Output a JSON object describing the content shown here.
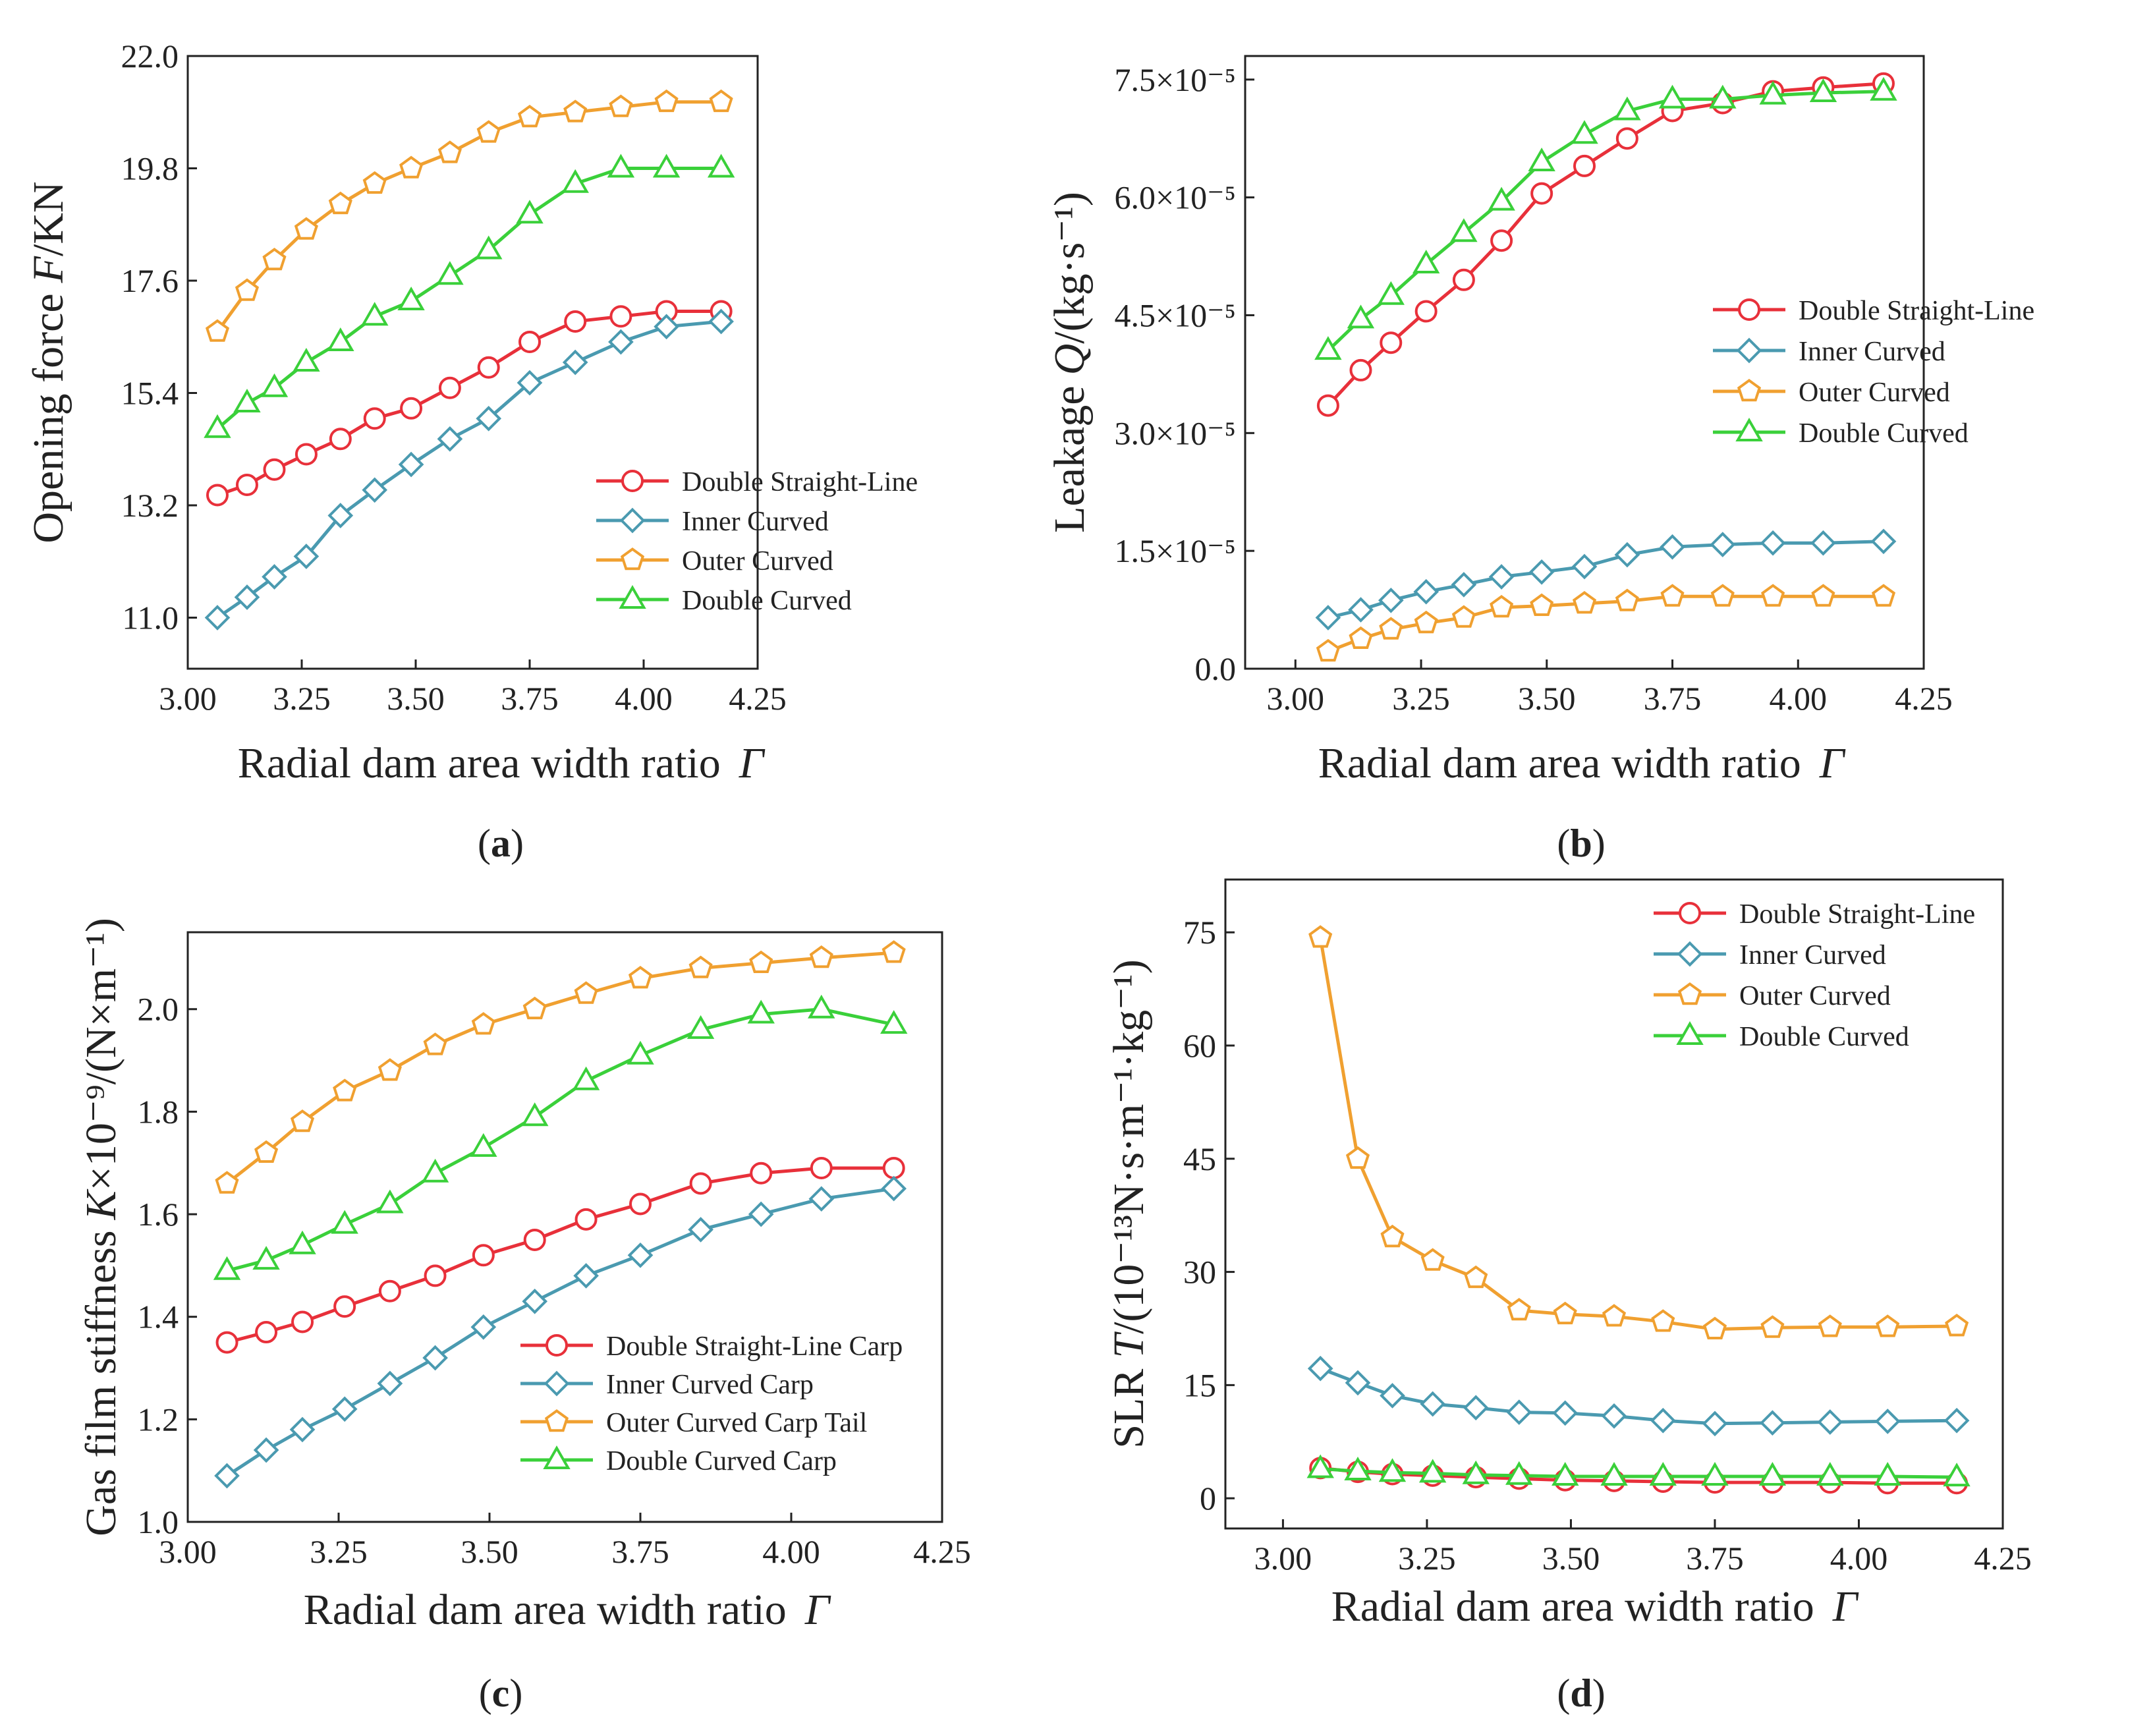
{
  "chart_data": [
    {
      "panel": "a",
      "type": "line",
      "panel_label": "a",
      "xlabel": "Radial dam area width ratio",
      "xsymbol": "Γ",
      "ylabel": "Opening force",
      "ysymbol": "F",
      "yunit": "/KN",
      "xlim": [
        3.0,
        4.25
      ],
      "ylim": [
        10.0,
        22.0
      ],
      "xticks": [
        "3.00",
        "3.25",
        "3.50",
        "3.75",
        "4.00",
        "4.25"
      ],
      "yticks": [
        "11.0",
        "13.2",
        "15.4",
        "17.6",
        "19.8",
        "22.0"
      ],
      "legend_position": "center-right",
      "x": [
        3.065,
        3.13,
        3.19,
        3.26,
        3.335,
        3.41,
        3.49,
        3.575,
        3.66,
        3.75,
        3.85,
        3.95,
        4.05,
        4.17
      ],
      "series": [
        {
          "name": "Double Straight-Line",
          "color": "#e8303a",
          "marker": "circle",
          "values": [
            13.4,
            13.6,
            13.9,
            14.2,
            14.5,
            14.9,
            15.1,
            15.5,
            15.9,
            16.4,
            16.8,
            16.9,
            17.0,
            17.0
          ]
        },
        {
          "name": "Inner Curved",
          "color": "#4a9ab0",
          "marker": "diamond",
          "values": [
            11.0,
            11.4,
            11.8,
            12.2,
            13.0,
            13.5,
            14.0,
            14.5,
            14.9,
            15.6,
            16.0,
            16.4,
            16.7,
            16.8
          ]
        },
        {
          "name": "Outer Curved",
          "color": "#f0a030",
          "marker": "pentagon",
          "values": [
            16.6,
            17.4,
            18.0,
            18.6,
            19.1,
            19.5,
            19.8,
            20.1,
            20.5,
            20.8,
            20.9,
            21.0,
            21.1,
            21.1
          ]
        },
        {
          "name": "Double Curved",
          "color": "#3ad03a",
          "marker": "triangle",
          "values": [
            14.7,
            15.2,
            15.5,
            16.0,
            16.4,
            16.9,
            17.2,
            17.7,
            18.2,
            18.9,
            19.5,
            19.8,
            19.8,
            19.8
          ]
        }
      ]
    },
    {
      "panel": "b",
      "type": "line",
      "panel_label": "b",
      "xlabel": "Radial dam area width ratio",
      "xsymbol": "Γ",
      "ylabel": "Leakage",
      "ysymbol": "Q",
      "yunit": "/(kg·s⁻¹)",
      "xlim": [
        2.9,
        4.25
      ],
      "ylim": [
        0,
        7.8
      ],
      "xticks": [
        "3.00",
        "3.25",
        "3.50",
        "3.75",
        "4.00",
        "4.25"
      ],
      "yticks": [
        "0.0",
        "1.5×10⁻⁵",
        "3.0×10⁻⁵",
        "4.5×10⁻⁵",
        "6.0×10⁻⁵",
        "7.5×10⁻⁵"
      ],
      "y_scale_note": "values in units of 10⁻⁵",
      "legend_position": "center-right",
      "x": [
        3.065,
        3.13,
        3.19,
        3.26,
        3.335,
        3.41,
        3.49,
        3.575,
        3.66,
        3.75,
        3.85,
        3.95,
        4.05,
        4.17
      ],
      "series": [
        {
          "name": "Double Straight-Line",
          "color": "#e8303a",
          "marker": "circle",
          "values": [
            3.35,
            3.8,
            4.15,
            4.55,
            4.95,
            5.45,
            6.05,
            6.4,
            6.75,
            7.1,
            7.2,
            7.35,
            7.4,
            7.45
          ]
        },
        {
          "name": "Inner Curved",
          "color": "#4a9ab0",
          "marker": "diamond",
          "values": [
            0.65,
            0.75,
            0.87,
            0.98,
            1.07,
            1.17,
            1.23,
            1.3,
            1.45,
            1.55,
            1.58,
            1.6,
            1.6,
            1.62
          ]
        },
        {
          "name": "Outer Curved",
          "color": "#f0a030",
          "marker": "pentagon",
          "values": [
            0.22,
            0.38,
            0.5,
            0.58,
            0.65,
            0.78,
            0.8,
            0.83,
            0.86,
            0.92,
            0.92,
            0.92,
            0.92,
            0.92
          ]
        },
        {
          "name": "Double Curved",
          "color": "#3ad03a",
          "marker": "triangle",
          "values": [
            4.05,
            4.45,
            4.75,
            5.15,
            5.55,
            5.95,
            6.45,
            6.8,
            7.1,
            7.25,
            7.25,
            7.3,
            7.33,
            7.35
          ]
        }
      ]
    },
    {
      "panel": "c",
      "type": "line",
      "panel_label": "c",
      "xlabel": "Radial dam area width ratio",
      "xsymbol": "Γ",
      "ylabel": "Gas film stiffness",
      "ysymbol": "K",
      "yunit": "×10⁻⁹/(N×m⁻¹)",
      "xlim": [
        3.0,
        4.25
      ],
      "ylim": [
        1.0,
        2.15
      ],
      "xticks": [
        "3.00",
        "3.25",
        "3.50",
        "3.75",
        "4.00",
        "4.25"
      ],
      "yticks": [
        "1.0",
        "1.2",
        "1.4",
        "1.6",
        "1.8",
        "2.0"
      ],
      "legend_position": "bottom-right",
      "x": [
        3.065,
        3.13,
        3.19,
        3.26,
        3.335,
        3.41,
        3.49,
        3.575,
        3.66,
        3.75,
        3.85,
        3.95,
        4.05,
        4.17
      ],
      "series": [
        {
          "name": "Double Straight-Line Carp",
          "color": "#e8303a",
          "marker": "circle",
          "values": [
            1.35,
            1.37,
            1.39,
            1.42,
            1.45,
            1.48,
            1.52,
            1.55,
            1.59,
            1.62,
            1.66,
            1.68,
            1.69,
            1.69
          ]
        },
        {
          "name": "Inner Curved Carp",
          "color": "#4a9ab0",
          "marker": "diamond",
          "values": [
            1.09,
            1.14,
            1.18,
            1.22,
            1.27,
            1.32,
            1.38,
            1.43,
            1.48,
            1.52,
            1.57,
            1.6,
            1.63,
            1.65
          ]
        },
        {
          "name": "Outer Curved Carp Tail",
          "color": "#f0a030",
          "marker": "pentagon",
          "values": [
            1.66,
            1.72,
            1.78,
            1.84,
            1.88,
            1.93,
            1.97,
            2.0,
            2.03,
            2.06,
            2.08,
            2.09,
            2.1,
            2.11
          ]
        },
        {
          "name": "Double Curved Carp",
          "color": "#3ad03a",
          "marker": "triangle",
          "values": [
            1.49,
            1.51,
            1.54,
            1.58,
            1.62,
            1.68,
            1.73,
            1.79,
            1.86,
            1.91,
            1.96,
            1.99,
            2.0,
            1.97
          ]
        }
      ]
    },
    {
      "panel": "d",
      "type": "line",
      "panel_label": "d",
      "xlabel": "Radial dam area width ratio",
      "xsymbol": "Γ",
      "ylabel": "SLR",
      "ysymbol": "T",
      "yunit": "/(10⁻¹³N·s·m⁻¹·kg⁻¹)",
      "xlim": [
        2.9,
        4.25
      ],
      "ylim": [
        -4,
        82
      ],
      "xticks": [
        "3.00",
        "3.25",
        "3.50",
        "3.75",
        "4.00",
        "4.25"
      ],
      "yticks": [
        "0",
        "15",
        "30",
        "45",
        "60",
        "75"
      ],
      "legend_position": "top-right",
      "x": [
        3.065,
        3.13,
        3.19,
        3.26,
        3.335,
        3.41,
        3.49,
        3.575,
        3.66,
        3.75,
        3.85,
        3.95,
        4.05,
        4.17
      ],
      "series": [
        {
          "name": "Double Straight-Line",
          "color": "#e8303a",
          "marker": "circle",
          "values": [
            4.0,
            3.5,
            3.2,
            3.0,
            2.8,
            2.6,
            2.4,
            2.3,
            2.2,
            2.1,
            2.1,
            2.1,
            2.0,
            2.0
          ]
        },
        {
          "name": "Inner Curved",
          "color": "#4a9ab0",
          "marker": "diamond",
          "values": [
            17.2,
            15.3,
            13.6,
            12.5,
            12.0,
            11.4,
            11.3,
            10.9,
            10.3,
            9.9,
            10.0,
            10.1,
            10.2,
            10.3
          ]
        },
        {
          "name": "Outer Curved",
          "color": "#f0a030",
          "marker": "pentagon",
          "values": [
            74.3,
            45.0,
            34.6,
            31.5,
            29.2,
            24.9,
            24.4,
            24.1,
            23.4,
            22.4,
            22.6,
            22.7,
            22.7,
            22.8
          ]
        },
        {
          "name": "Double Curved",
          "color": "#3ad03a",
          "marker": "triangle",
          "values": [
            3.9,
            3.6,
            3.4,
            3.3,
            3.1,
            3.0,
            2.9,
            2.9,
            2.9,
            2.9,
            2.9,
            2.9,
            2.9,
            2.8
          ]
        }
      ]
    }
  ]
}
